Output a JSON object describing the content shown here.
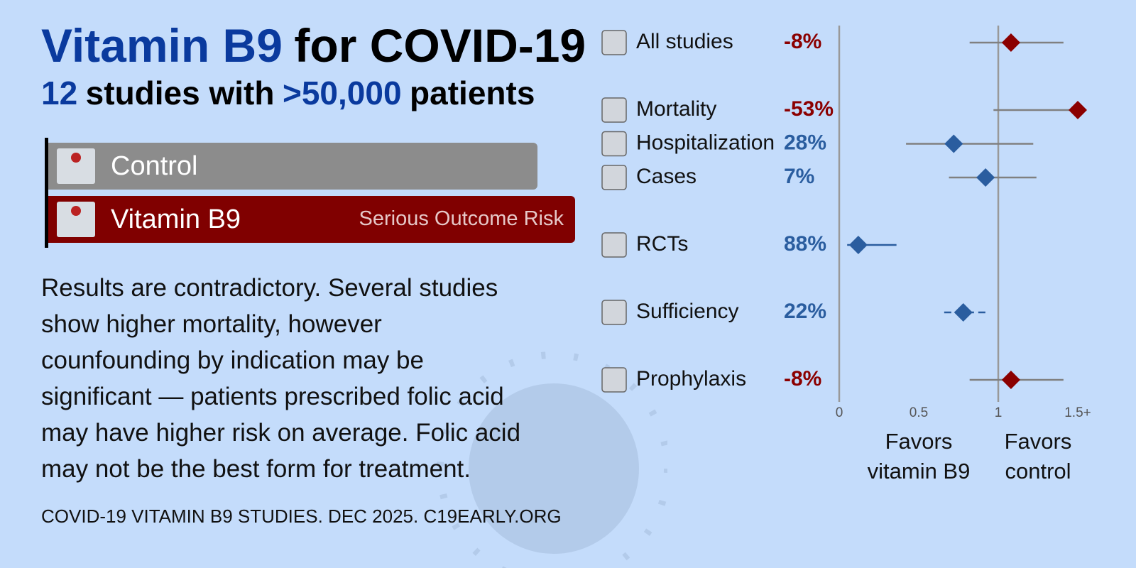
{
  "header": {
    "title": [
      {
        "text": "Vitamin B9",
        "accent": true
      },
      {
        "text": "for COVID-19",
        "accent": false
      }
    ],
    "subtitle": [
      {
        "text": "12",
        "accent": true
      },
      {
        "text": "studies with",
        "accent": false
      },
      {
        "text": ">50,000",
        "accent": true
      },
      {
        "text": "patients",
        "accent": false
      }
    ]
  },
  "legend": {
    "control": "Control",
    "treatment": "Vitamin B9",
    "outcome": "Serious Outcome Risk"
  },
  "description": [
    "Results are contradictory. Several studies",
    "show higher mortality, however",
    "counfounding by indication may be",
    "significant — patients prescribed folic acid",
    "may have higher risk on average. Folic acid",
    "may not be the best form for treatment."
  ],
  "footer": "COVID-19 VITAMIN B9 STUDIES. DEC 2025. C19EARLY.ORG",
  "chart_data": {
    "type": "forest",
    "xlim": [
      0,
      1.5
    ],
    "xticks": [
      0,
      0.5,
      1,
      {
        "value": 1.5,
        "label": "1.5+"
      }
    ],
    "reference": 1,
    "positive_color": "#2a5d9f",
    "negative_color": "#8b0000",
    "x_labels": {
      "left": [
        "Favors",
        "vitamin B9"
      ],
      "right": [
        "Favors",
        "control"
      ]
    },
    "groups": [
      {
        "rows": [
          {
            "name": "All studies",
            "value": -8,
            "value_label": "-8%",
            "estimate": 1.08,
            "ci": [
              0.82,
              1.41
            ],
            "ci_color": "#808080"
          }
        ]
      },
      {
        "rows": [
          {
            "name": "Mortality",
            "value": -53,
            "value_label": "-53%",
            "estimate": 1.5,
            "ci": [
              0.97,
              1.5
            ],
            "ci_color": "#808080"
          },
          {
            "name": "Hospitalization",
            "value": 28,
            "value_label": "28%",
            "estimate": 0.72,
            "ci": [
              0.42,
              1.22
            ],
            "ci_color": "#808080"
          },
          {
            "name": "Cases",
            "value": 7,
            "value_label": "7%",
            "estimate": 0.92,
            "ci": [
              0.69,
              1.24
            ],
            "ci_color": "#808080"
          }
        ]
      },
      {
        "rows": [
          {
            "name": "RCTs",
            "value": 88,
            "value_label": "88%",
            "estimate": 0.12,
            "ci": [
              0.05,
              0.36
            ],
            "ci_color": "#2a5d9f"
          }
        ]
      },
      {
        "rows": [
          {
            "name": "Sufficiency",
            "value": 22,
            "value_label": "22%",
            "estimate": 0.78,
            "ci": [
              0.66,
              0.92
            ],
            "ci_color": "#2a5d9f",
            "ci_dashed": true
          }
        ]
      },
      {
        "rows": [
          {
            "name": "Prophylaxis",
            "value": -8,
            "value_label": "-8%",
            "estimate": 1.08,
            "ci": [
              0.82,
              1.41
            ],
            "ci_color": "#808080"
          }
        ]
      }
    ]
  }
}
